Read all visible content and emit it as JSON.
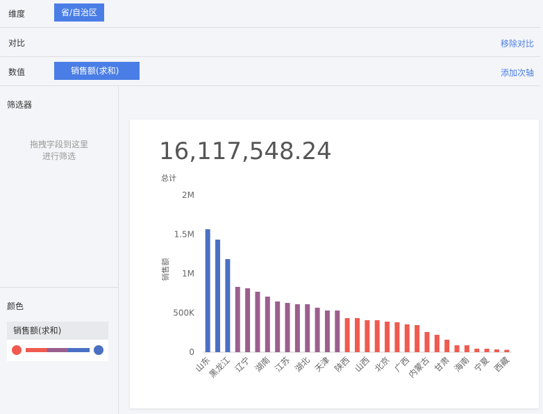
{
  "toolbar": {
    "dimension_label": "维度",
    "dimension_chip": "省/自治区",
    "compare_label": "对比",
    "remove_compare": "移除对比",
    "value_label": "数值",
    "value_chip": "销售额(求和)",
    "add_axis": "添加次轴"
  },
  "sidebar": {
    "filter_title": "筛选器",
    "filter_hint_1": "拖拽字段到这里",
    "filter_hint_2": "进行筛选",
    "color_title": "颜色",
    "color_field": "销售额(求和)"
  },
  "summary": {
    "total": "16,117,548.24",
    "total_label": "总计"
  },
  "chart_data": {
    "type": "bar",
    "y_label": "销售额",
    "categories": [
      "山东",
      null,
      "黑龙江",
      null,
      "辽宁",
      null,
      "湖南",
      null,
      "江苏",
      null,
      "湖北",
      null,
      "天津",
      null,
      "陕西",
      null,
      "山西",
      null,
      "北京",
      null,
      "广西",
      null,
      "内蒙古",
      null,
      "甘肃",
      null,
      "海南",
      null,
      "宁夏",
      null,
      "西藏"
    ],
    "values": [
      1566000,
      1434000,
      1186000,
      832000,
      814000,
      770000,
      708000,
      646000,
      628000,
      611000,
      611000,
      566000,
      531000,
      531000,
      434000,
      434000,
      407000,
      407000,
      389000,
      381000,
      354000,
      345000,
      257000,
      221000,
      159000,
      88000,
      88000,
      44000,
      44000,
      35000,
      30000
    ],
    "colors": [
      "#4a6fc4",
      "#4a6fc4",
      "#4a6fc4",
      "#9b5f8e",
      "#9b5f8e",
      "#9b5f8e",
      "#9b5f8e",
      "#9b5f8e",
      "#9b5f8e",
      "#9b5f8e",
      "#9b5f8e",
      "#9b5f8e",
      "#9b5f8e",
      "#9b5f8e",
      "#f05a4f",
      "#f05a4f",
      "#f05a4f",
      "#f05a4f",
      "#f05a4f",
      "#f05a4f",
      "#f05a4f",
      "#f05a4f",
      "#f05a4f",
      "#f05a4f",
      "#f05a4f",
      "#f05a4f",
      "#f05a4f",
      "#f05a4f",
      "#f05a4f",
      "#f05a4f",
      "#f05a4f"
    ],
    "ylim": [
      0,
      2000000
    ],
    "yticks": [
      0,
      {
        "value": 500000,
        "label": "500K"
      },
      {
        "value": 1000000,
        "label": "1M"
      },
      {
        "value": 1500000,
        "label": "1.5M"
      },
      {
        "value": 2000000,
        "label": "2M"
      }
    ]
  }
}
